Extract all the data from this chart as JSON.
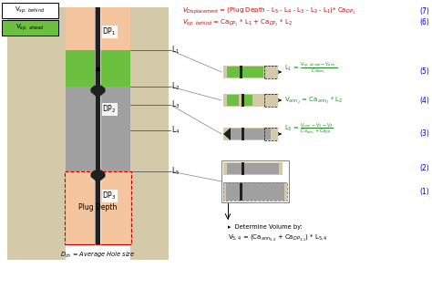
{
  "fig_w": 4.74,
  "fig_h": 3.28,
  "dpi": 100,
  "formation_color": "#d4c9a8",
  "plug_depth_color": "#f5c5a0",
  "cement_color": "#a0a0a0",
  "green_color": "#6cc040",
  "white": "#ffffff",
  "dark": "#202020",
  "red": "#cc0000",
  "green_eq": "#228b22",
  "blue": "#0000cc",
  "gray_line": "#888888"
}
